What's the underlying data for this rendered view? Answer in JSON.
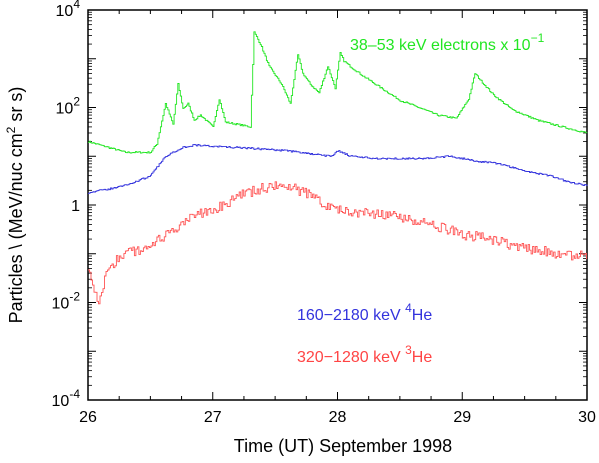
{
  "chart_data": {
    "type": "line",
    "xlabel": "Time (UT)   September  1998",
    "ylabel_parts": [
      "Particles \\ (MeV/nuc cm",
      "2",
      " sr s)"
    ],
    "x_ticks": [
      "26",
      "27",
      "28",
      "29",
      "30"
    ],
    "x_tick_values": [
      26,
      27,
      28,
      29,
      30
    ],
    "xlim": [
      26,
      30
    ],
    "y_scale": "log",
    "ylim": [
      0.0001,
      10000
    ],
    "y_ticks": [
      {
        "value": 10000,
        "base": "10",
        "exp": "4"
      },
      {
        "value": 100,
        "base": "10",
        "exp": "2"
      },
      {
        "value": 1,
        "base": "1",
        "exp": ""
      },
      {
        "value": 0.01,
        "base": "10",
        "exp": "-2"
      },
      {
        "value": 0.0001,
        "base": "10",
        "exp": "-4"
      }
    ],
    "series": [
      {
        "name": "38-53 keV electrons x 10-1",
        "label_parts": [
          "38–53 keV electrons x 10",
          "−1"
        ],
        "color": "#22e622",
        "x": [
          26.0,
          26.3,
          26.5,
          26.55,
          26.62,
          26.68,
          26.72,
          26.76,
          26.8,
          26.85,
          26.9,
          27.0,
          27.05,
          27.1,
          27.2,
          27.3,
          27.33,
          27.38,
          27.45,
          27.55,
          27.62,
          27.68,
          27.72,
          27.78,
          27.85,
          27.92,
          27.98,
          28.02,
          28.05,
          28.1,
          28.2,
          28.35,
          28.5,
          28.65,
          28.8,
          28.95,
          29.05,
          29.1,
          29.15,
          29.25,
          29.4,
          29.6,
          29.8,
          30.0
        ],
        "y": [
          20,
          12,
          12,
          18,
          120,
          45,
          300,
          95,
          120,
          55,
          70,
          40,
          150,
          50,
          45,
          40,
          3500,
          2000,
          700,
          300,
          120,
          1200,
          500,
          300,
          200,
          700,
          250,
          1300,
          900,
          700,
          450,
          250,
          140,
          100,
          70,
          60,
          150,
          500,
          350,
          180,
          90,
          55,
          40,
          30
        ]
      },
      {
        "name": "160-2180 keV 4He",
        "label_parts": [
          "160−2180 keV  ",
          "4",
          "He"
        ],
        "color": "#3333dd",
        "x": [
          26.0,
          26.2,
          26.35,
          26.5,
          26.62,
          26.75,
          26.85,
          27.0,
          27.2,
          27.4,
          27.6,
          27.8,
          27.95,
          28.0,
          28.1,
          28.3,
          28.5,
          28.7,
          28.9,
          29.0,
          29.1,
          29.3,
          29.5,
          29.7,
          29.85,
          30.0
        ],
        "y": [
          1.8,
          2.2,
          2.8,
          4,
          10,
          15,
          17,
          16,
          15,
          14,
          13,
          11,
          10,
          13,
          10,
          9,
          9,
          9,
          10,
          9,
          8,
          7,
          5,
          4,
          3,
          2.5
        ]
      },
      {
        "name": "320-1280 keV 3He",
        "label_parts": [
          "320−1280 keV  ",
          "3",
          "He"
        ],
        "color": "#ff5555",
        "x": [
          26.0,
          26.08,
          26.15,
          26.3,
          26.5,
          26.7,
          26.85,
          27.0,
          27.2,
          27.4,
          27.55,
          27.7,
          27.85,
          28.0,
          28.2,
          28.4,
          28.6,
          28.8,
          29.0,
          29.2,
          29.4,
          29.6,
          29.8,
          30.0
        ],
        "y": [
          0.06,
          0.008,
          0.05,
          0.1,
          0.15,
          0.3,
          0.6,
          0.8,
          1.5,
          2.2,
          2.5,
          2,
          1.2,
          0.8,
          0.7,
          0.6,
          0.5,
          0.35,
          0.25,
          0.2,
          0.15,
          0.12,
          0.1,
          0.09
        ]
      }
    ]
  }
}
